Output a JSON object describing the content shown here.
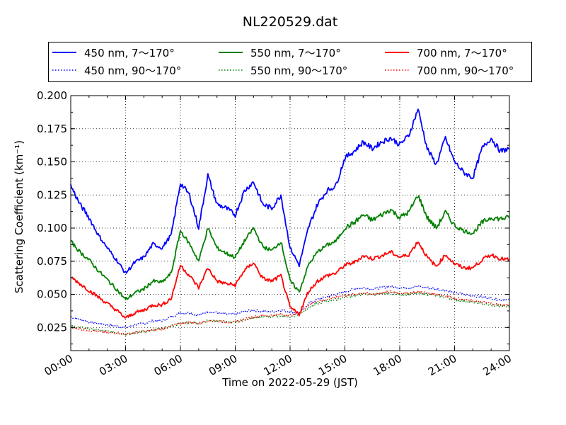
{
  "chart_data": {
    "type": "line",
    "title": "NL220529.dat",
    "xlabel": "Time on 2022-05-29 (JST)",
    "ylabel": "Scattering Coefficient (km⁻¹)",
    "xlim": [
      "2022-05-29 00:00",
      "2022-05-30 00:00"
    ],
    "ylim": [
      0.0075,
      0.2
    ],
    "xticks": [
      "00:00",
      "03:00",
      "06:00",
      "09:00",
      "12:00",
      "15:00",
      "18:00",
      "21:00",
      "24:00"
    ],
    "yticks": [
      "0.025",
      "0.050",
      "0.075",
      "0.100",
      "0.125",
      "0.150",
      "0.175",
      "0.200"
    ],
    "grid": true,
    "legend_position": "top",
    "x": [
      "00:00",
      "00:30",
      "01:00",
      "01:30",
      "02:00",
      "02:30",
      "03:00",
      "03:30",
      "04:00",
      "04:30",
      "05:00",
      "05:30",
      "06:00",
      "06:30",
      "07:00",
      "07:30",
      "08:00",
      "08:30",
      "09:00",
      "09:30",
      "10:00",
      "10:30",
      "11:00",
      "11:30",
      "12:00",
      "12:30",
      "13:00",
      "13:30",
      "14:00",
      "14:30",
      "15:00",
      "15:30",
      "16:00",
      "16:30",
      "17:00",
      "17:30",
      "18:00",
      "18:30",
      "19:00",
      "19:30",
      "20:00",
      "20:30",
      "21:00",
      "21:30",
      "22:00",
      "22:30",
      "23:00",
      "23:30",
      "24:00"
    ],
    "series": [
      {
        "name": "450 nm, 7～170°",
        "color": "#0000ff",
        "style": "solid",
        "values": [
          0.132,
          0.118,
          0.108,
          0.095,
          0.085,
          0.076,
          0.066,
          0.074,
          0.078,
          0.088,
          0.085,
          0.095,
          0.134,
          0.125,
          0.1,
          0.14,
          0.118,
          0.115,
          0.11,
          0.128,
          0.135,
          0.118,
          0.115,
          0.125,
          0.085,
          0.072,
          0.1,
          0.118,
          0.128,
          0.132,
          0.153,
          0.158,
          0.165,
          0.16,
          0.165,
          0.168,
          0.163,
          0.17,
          0.19,
          0.16,
          0.148,
          0.168,
          0.15,
          0.142,
          0.138,
          0.16,
          0.168,
          0.158,
          0.16
        ]
      },
      {
        "name": "450 nm, 90～170°",
        "color": "#0000ff",
        "style": "dotted",
        "values": [
          0.033,
          0.031,
          0.029,
          0.028,
          0.027,
          0.026,
          0.025,
          0.027,
          0.028,
          0.03,
          0.03,
          0.033,
          0.036,
          0.036,
          0.034,
          0.037,
          0.036,
          0.035,
          0.035,
          0.037,
          0.038,
          0.037,
          0.037,
          0.038,
          0.037,
          0.036,
          0.043,
          0.046,
          0.048,
          0.05,
          0.052,
          0.054,
          0.055,
          0.054,
          0.055,
          0.056,
          0.055,
          0.055,
          0.056,
          0.055,
          0.054,
          0.053,
          0.051,
          0.05,
          0.049,
          0.048,
          0.047,
          0.046,
          0.046
        ]
      },
      {
        "name": "550 nm, 7～170°",
        "color": "#008000",
        "style": "solid",
        "values": [
          0.09,
          0.082,
          0.076,
          0.068,
          0.061,
          0.054,
          0.046,
          0.051,
          0.054,
          0.06,
          0.059,
          0.066,
          0.098,
          0.088,
          0.075,
          0.1,
          0.085,
          0.081,
          0.078,
          0.09,
          0.1,
          0.086,
          0.083,
          0.09,
          0.06,
          0.052,
          0.072,
          0.082,
          0.087,
          0.09,
          0.1,
          0.104,
          0.11,
          0.106,
          0.11,
          0.114,
          0.108,
          0.112,
          0.125,
          0.108,
          0.1,
          0.112,
          0.102,
          0.098,
          0.096,
          0.104,
          0.108,
          0.107,
          0.108
        ]
      },
      {
        "name": "550 nm, 90～170°",
        "color": "#008000",
        "style": "dotted",
        "values": [
          0.026,
          0.025,
          0.024,
          0.023,
          0.022,
          0.021,
          0.02,
          0.021,
          0.022,
          0.023,
          0.024,
          0.026,
          0.028,
          0.029,
          0.028,
          0.03,
          0.03,
          0.029,
          0.029,
          0.031,
          0.032,
          0.033,
          0.033,
          0.034,
          0.033,
          0.035,
          0.04,
          0.043,
          0.045,
          0.046,
          0.048,
          0.049,
          0.05,
          0.05,
          0.05,
          0.051,
          0.05,
          0.05,
          0.051,
          0.05,
          0.049,
          0.048,
          0.046,
          0.045,
          0.044,
          0.043,
          0.042,
          0.041,
          0.041
        ]
      },
      {
        "name": "700 nm, 7～170°",
        "color": "#ff0000",
        "style": "solid",
        "values": [
          0.063,
          0.058,
          0.053,
          0.048,
          0.043,
          0.038,
          0.032,
          0.036,
          0.038,
          0.042,
          0.042,
          0.047,
          0.072,
          0.064,
          0.055,
          0.07,
          0.06,
          0.058,
          0.057,
          0.068,
          0.074,
          0.062,
          0.06,
          0.064,
          0.04,
          0.035,
          0.052,
          0.06,
          0.064,
          0.066,
          0.072,
          0.074,
          0.079,
          0.077,
          0.079,
          0.082,
          0.078,
          0.08,
          0.09,
          0.078,
          0.071,
          0.08,
          0.073,
          0.07,
          0.07,
          0.076,
          0.08,
          0.077,
          0.076
        ]
      },
      {
        "name": "700 nm, 90～170°",
        "color": "#ff0000",
        "style": "dotted",
        "values": [
          0.025,
          0.024,
          0.023,
          0.022,
          0.021,
          0.021,
          0.02,
          0.021,
          0.022,
          0.023,
          0.024,
          0.026,
          0.028,
          0.029,
          0.028,
          0.03,
          0.03,
          0.029,
          0.029,
          0.031,
          0.033,
          0.034,
          0.034,
          0.035,
          0.034,
          0.036,
          0.042,
          0.045,
          0.046,
          0.048,
          0.049,
          0.05,
          0.051,
          0.05,
          0.051,
          0.052,
          0.051,
          0.051,
          0.052,
          0.051,
          0.05,
          0.049,
          0.047,
          0.046,
          0.045,
          0.044,
          0.043,
          0.042,
          0.042
        ]
      }
    ]
  }
}
